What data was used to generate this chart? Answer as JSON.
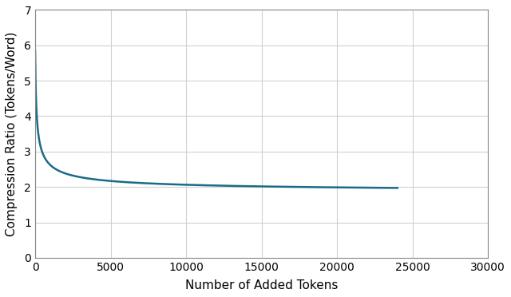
{
  "title": "",
  "xlabel": "Number of Added Tokens",
  "ylabel": "Compression Ratio (Tokens/Word)",
  "xlim": [
    0,
    30000
  ],
  "ylim": [
    0,
    7
  ],
  "xticks": [
    0,
    5000,
    10000,
    15000,
    20000,
    25000,
    30000
  ],
  "yticks": [
    0,
    1,
    2,
    3,
    4,
    5,
    6,
    7
  ],
  "line_color": "#1a6b87",
  "line_width": 1.8,
  "grid_color": "#d0d0d0",
  "background_color": "#ffffff",
  "curve_a": 3600,
  "curve_b": 130,
  "curve_c": 1.82,
  "x_data_end": 24000,
  "figsize": [
    6.4,
    3.72
  ],
  "dpi": 100,
  "xlabel_fontsize": 11,
  "ylabel_fontsize": 11,
  "tick_fontsize": 10
}
